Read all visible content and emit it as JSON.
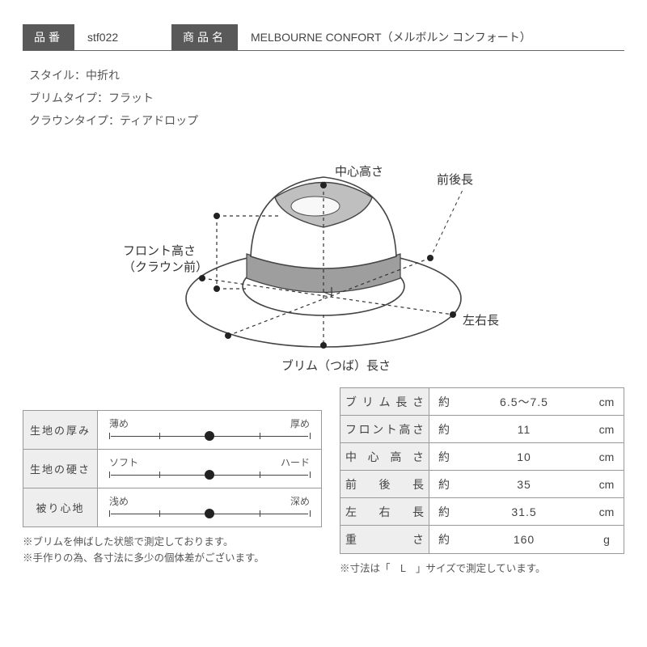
{
  "header": {
    "code_label": "品番",
    "code_value": "stf022",
    "name_label": "商品名",
    "name_value": "MELBOURNE CONFORT（メルボルン コンフォート）"
  },
  "specs": {
    "style": "スタイル：中折れ",
    "brim_type": "ブリムタイプ：フラット",
    "crown_type": "クラウンタイプ：ティアドロップ"
  },
  "diagram": {
    "labels": {
      "center_h": "中心高さ",
      "fb_len": "前後長",
      "front_h_1": "フロント高さ",
      "front_h_2": "（クラウン前）",
      "lr_len": "左右長",
      "brim_len": "ブリム（つば）長さ"
    },
    "colors": {
      "outline": "#444444",
      "band": "#9e9e9e",
      "crown_shade": "#bfbfbf",
      "guide": "#333333",
      "text": "#333333"
    }
  },
  "sliders": [
    {
      "label": "生地の厚み",
      "min": "薄め",
      "max": "厚め",
      "value": 0.5
    },
    {
      "label": "生地の硬さ",
      "min": "ソフト",
      "max": "ハード",
      "value": 0.5
    },
    {
      "label": "被り心地",
      "min": "浅め",
      "max": "深め",
      "value": 0.5
    }
  ],
  "slider_footnote_1": "※ブリムを伸ばした状態で測定しております。",
  "slider_footnote_2": "※手作りの為、各寸法に多少の個体差がございます。",
  "measurements": [
    {
      "label": "ブリム長さ",
      "approx": "約",
      "value": "6.5～7.5",
      "unit": "cm"
    },
    {
      "label": "フロント高さ",
      "approx": "約",
      "value": "11",
      "unit": "cm"
    },
    {
      "label": "中心高さ",
      "approx": "約",
      "value": "10",
      "unit": "cm"
    },
    {
      "label": "前後長",
      "approx": "約",
      "value": "35",
      "unit": "cm"
    },
    {
      "label": "左右長",
      "approx": "約",
      "value": "31.5",
      "unit": "cm"
    },
    {
      "label": "重さ",
      "approx": "約",
      "value": "160",
      "unit": "g"
    }
  ],
  "meas_footnote": "※寸法は「　L　」サイズで測定しています。",
  "slider_tick_positions": [
    0,
    0.25,
    0.5,
    0.75,
    1.0
  ]
}
